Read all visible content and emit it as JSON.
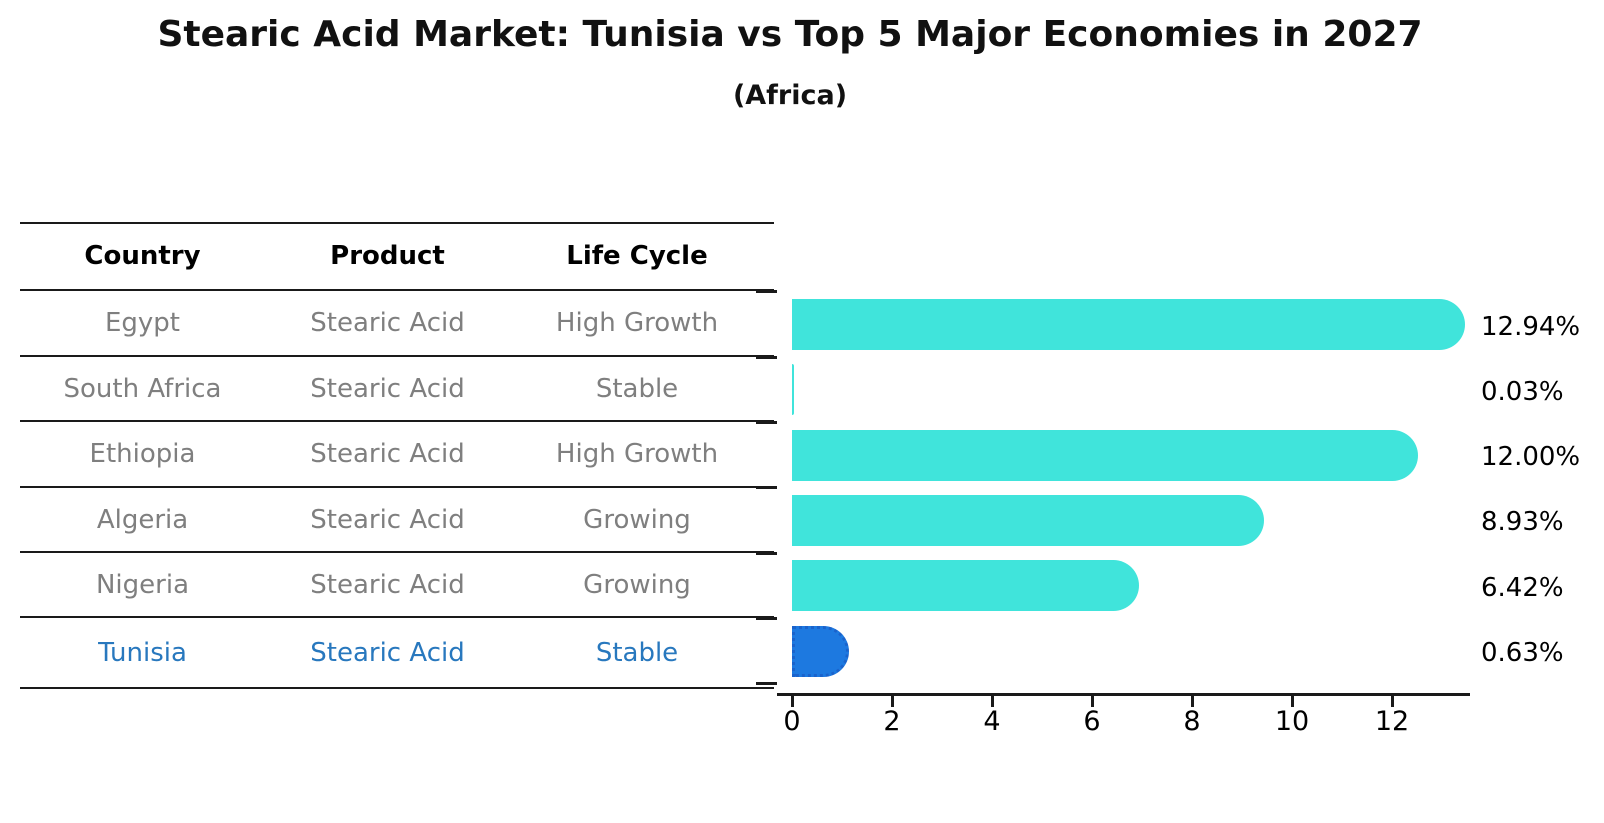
{
  "title": "Stearic Acid Market: Tunisia vs Top 5 Major Economies in 2027",
  "subtitle": "(Africa)",
  "table": {
    "headers": [
      "Country",
      "Product",
      "Life Cycle"
    ],
    "rows": [
      {
        "country": "Egypt",
        "product": "Stearic Acid",
        "life_cycle": "High Growth",
        "highlight": false
      },
      {
        "country": "South Africa",
        "product": "Stearic Acid",
        "life_cycle": "Stable",
        "highlight": false
      },
      {
        "country": "Ethiopia",
        "product": "Stearic Acid",
        "life_cycle": "High Growth",
        "highlight": false
      },
      {
        "country": "Algeria",
        "product": "Stearic Acid",
        "life_cycle": "Growing",
        "highlight": false
      },
      {
        "country": "Nigeria",
        "product": "Stearic Acid",
        "life_cycle": "Growing",
        "highlight": false
      },
      {
        "country": "Tunisia",
        "product": "Stearic Acid",
        "life_cycle": "Stable",
        "highlight": true
      }
    ]
  },
  "chart_data": {
    "type": "bar",
    "orientation": "horizontal",
    "title": "Stearic Acid Market: Tunisia vs Top 5 Major Economies in 2027",
    "subtitle": "(Africa)",
    "categories": [
      "Egypt",
      "South Africa",
      "Ethiopia",
      "Algeria",
      "Nigeria",
      "Tunisia"
    ],
    "values": [
      12.94,
      0.03,
      12.0,
      8.93,
      6.42,
      0.63
    ],
    "value_labels": [
      "12.94%",
      "0.03%",
      "12.00%",
      "8.93%",
      "6.42%",
      "0.63%"
    ],
    "highlight_index": 5,
    "xticks": [
      0,
      2,
      4,
      6,
      8,
      10,
      12
    ],
    "xtick_labels": [
      "0",
      "2",
      "4",
      "6",
      "8",
      "10",
      "12"
    ],
    "xlim": [
      0,
      13.6
    ],
    "grid": false,
    "legend": false
  },
  "colors": {
    "bar": "#40e4db",
    "highlight_bar": "#1d79e0",
    "highlight_bar_border": "#1a63cc",
    "table_text": "#7f7f7f",
    "highlight_text": "#2878be",
    "axis": "#1a1a1a"
  }
}
